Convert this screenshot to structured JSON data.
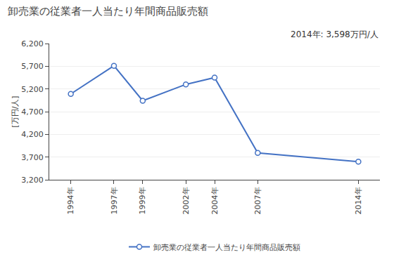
{
  "chart_data": {
    "type": "line",
    "title": "卸売業の従業者一人当たり年間商品販売額",
    "ylabel": "[万円/人]",
    "annotation": "2014年: 3,598万円/人",
    "x": [
      1994,
      1997,
      1999,
      2002,
      2004,
      2007,
      2014
    ],
    "xlim": [
      1992.5,
      2015.5
    ],
    "xticks": [
      {
        "value": 1994,
        "label": "1994年"
      },
      {
        "value": 1997,
        "label": "1997年"
      },
      {
        "value": 1999,
        "label": "1999年"
      },
      {
        "value": 2002,
        "label": "2002年"
      },
      {
        "value": 2004,
        "label": "2004年"
      },
      {
        "value": 2007,
        "label": "2007年"
      },
      {
        "value": 2014,
        "label": "2014年"
      }
    ],
    "ylim": [
      3200,
      6200
    ],
    "yticks": [
      {
        "value": 3200,
        "label": "3,200"
      },
      {
        "value": 3700,
        "label": "3,700"
      },
      {
        "value": 4200,
        "label": "4,200"
      },
      {
        "value": 4700,
        "label": "4,700"
      },
      {
        "value": 5200,
        "label": "5,200"
      },
      {
        "value": 5700,
        "label": "5,700"
      },
      {
        "value": 6200,
        "label": "6,200"
      }
    ],
    "series": [
      {
        "name": "卸売業の従業者一人当たり年間商品販売額",
        "color": "#4472C4",
        "marker": "circle",
        "values": [
          5090,
          5710,
          4940,
          5300,
          5450,
          3790,
          3598
        ]
      }
    ],
    "grid": true,
    "legend": "bottom"
  }
}
